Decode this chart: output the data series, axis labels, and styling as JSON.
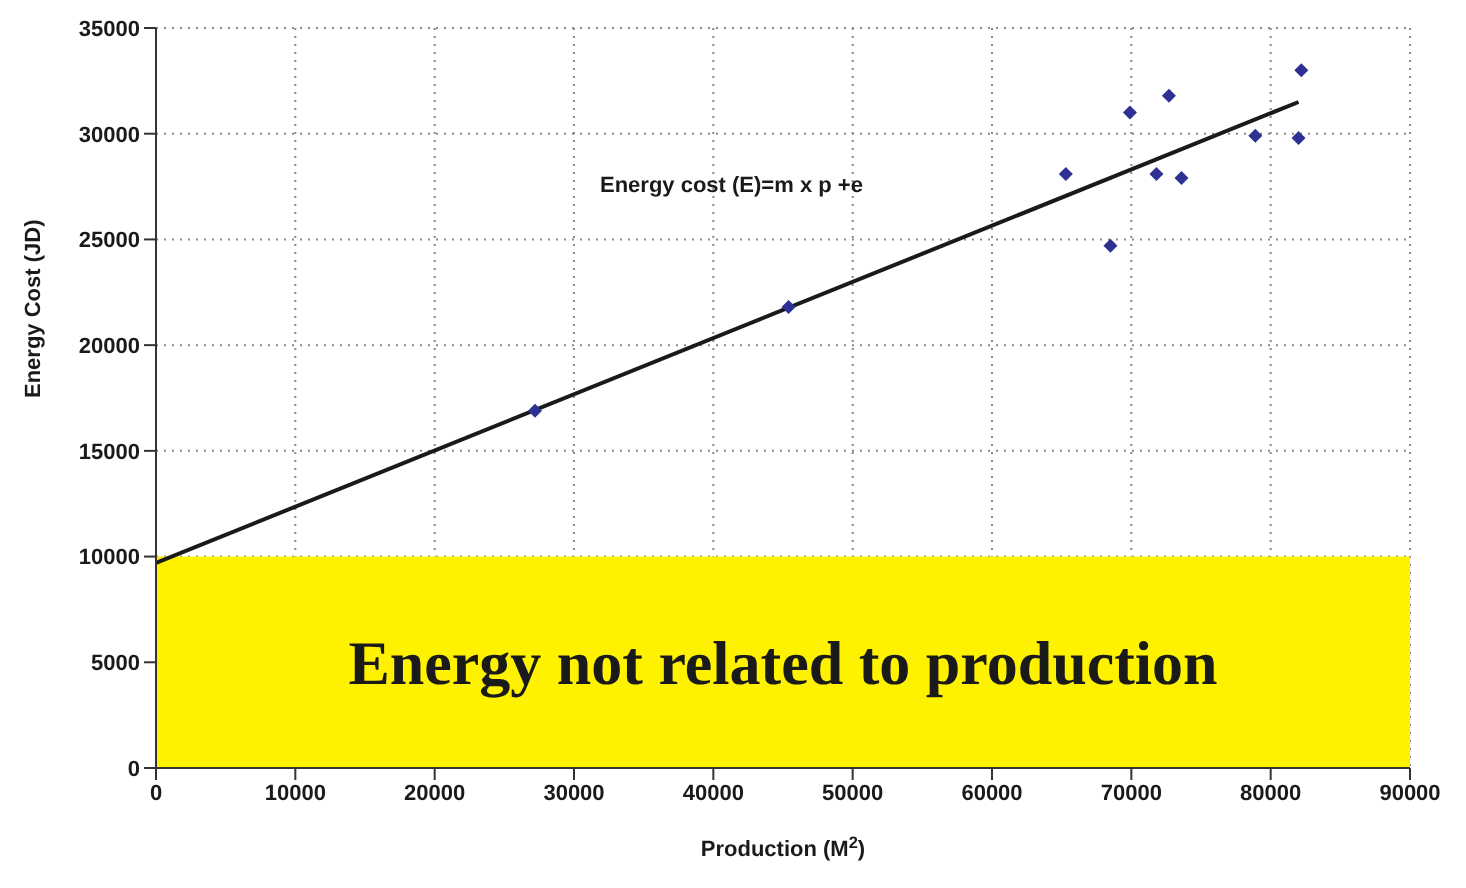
{
  "chart_data": {
    "type": "scatter",
    "xlabel": "Production (M$^{2}$)",
    "ylabel": "Energy Cost (JD)",
    "annotations": [
      "Energy cost (E)=m x p +e"
    ],
    "series": [
      {
        "color": "#2e3192",
        "marker": "diamond",
        "x": [
          27200,
          45400,
          65300,
          68500,
          69900,
          71800,
          72700,
          73600,
          78900,
          82000,
          82200
        ],
        "values": [
          16900,
          21800,
          28100,
          24700,
          31000,
          28100,
          31800,
          27900,
          29900,
          29800,
          33000
        ]
      },
      {
        "type": "line",
        "color": "#1a1a1a",
        "marker": "none",
        "x": [
          0,
          82000
        ],
        "values": [
          9700,
          31500
        ]
      }
    ],
    "bands": [
      {
        "axis": "y",
        "from": 0,
        "to": 10000,
        "label": "Energy not related to production",
        "color": "#fff200"
      }
    ],
    "xlim": [
      0,
      90000
    ],
    "xticks": [
      0,
      10000,
      20000,
      30000,
      40000,
      50000,
      60000,
      70000,
      80000,
      90000
    ],
    "ylim": [
      0,
      35000
    ],
    "yticks": [
      0,
      5000,
      10000,
      15000,
      20000,
      25000,
      30000,
      35000
    ],
    "grid": true,
    "legend": false
  }
}
